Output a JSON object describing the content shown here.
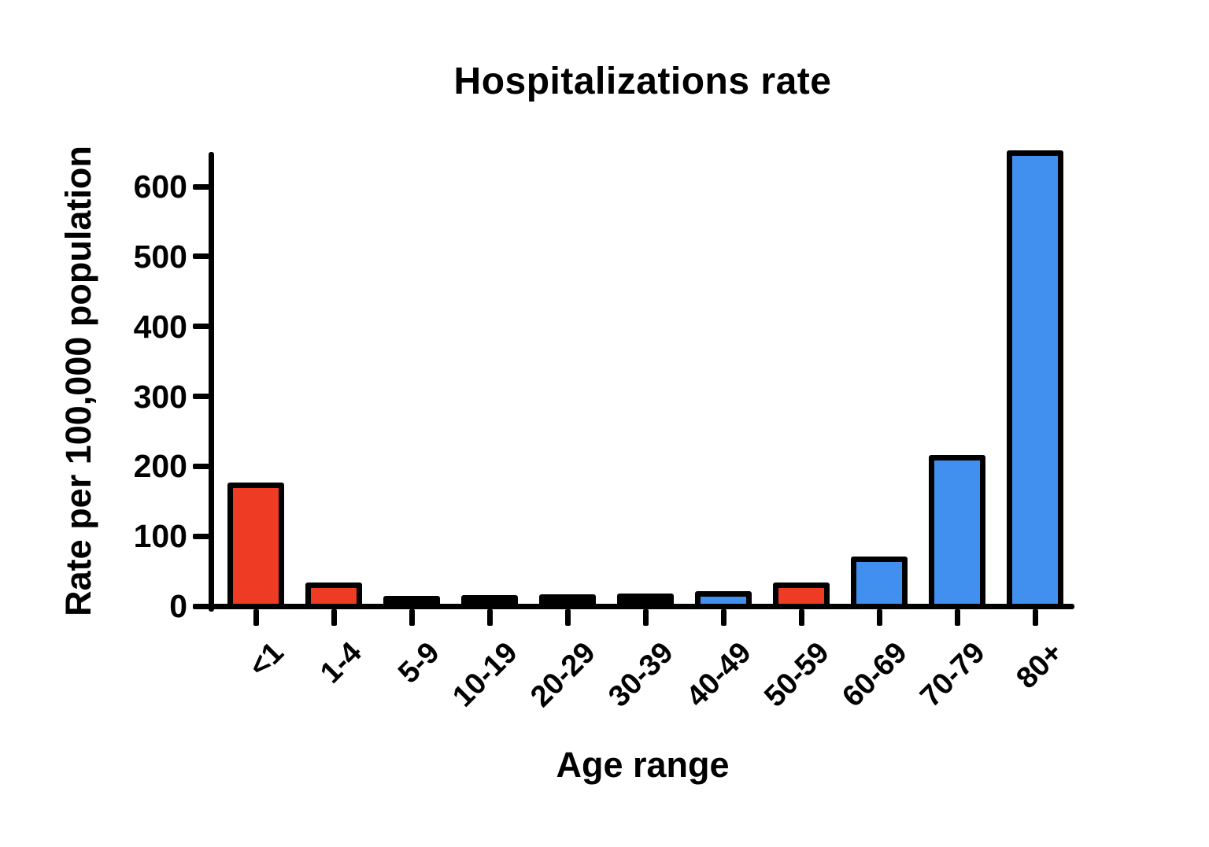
{
  "title": "Hospitalizations rate",
  "chart_data": {
    "type": "bar",
    "title": "Hospitalizations rate",
    "xlabel": "Age range",
    "ylabel": "Rate per 100,000 population",
    "categories": [
      "<1",
      "1-4",
      "5-9",
      "10-19",
      "20-29",
      "30-39",
      "40-49",
      "50-59",
      "60-69",
      "70-79",
      "80+"
    ],
    "values": [
      165,
      22,
      3,
      4,
      6,
      7,
      10,
      22,
      60,
      205,
      640
    ],
    "bar_colors": [
      "#ED3B24",
      "#ED3B24",
      "#000000",
      "#000000",
      "#000000",
      "#000000",
      "#4190F0",
      "#ED3B24",
      "#4190F0",
      "#4190F0",
      "#4190F0"
    ],
    "yticks": [
      0,
      100,
      200,
      300,
      400,
      500,
      600
    ],
    "ylim": [
      0,
      650
    ],
    "grid": false,
    "legend_position": "none",
    "colors": {
      "red": "#ED3B24",
      "blue": "#4190F0",
      "axis": "#000000",
      "background": "#FFFFFF",
      "bar_outline": "#000000"
    }
  }
}
